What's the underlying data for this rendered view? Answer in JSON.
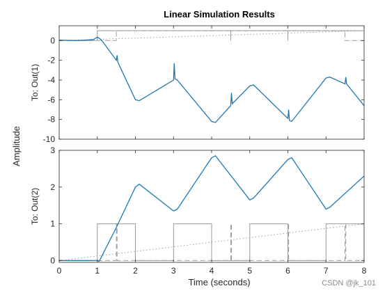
{
  "chart_data": {
    "type": "line",
    "title": "Linear Simulation Results",
    "xlabel": "Time (seconds)",
    "ylabel": "Amplitude",
    "grid": false,
    "x_ticks": [
      0,
      1,
      2,
      3,
      4,
      5,
      6,
      7,
      8
    ],
    "xlim": [
      0,
      8
    ],
    "subplots": [
      {
        "ylabel": "To: Out(1)",
        "ylim": [
          -10,
          1.5
        ],
        "y_ticks": [
          0,
          -2,
          -4,
          -6,
          -8,
          -10
        ],
        "response": {
          "color": "#1f77b4",
          "points": [
            [
              0,
              0.05
            ],
            [
              0.5,
              0.0
            ],
            [
              0.9,
              0.1
            ],
            [
              1.0,
              0.35
            ],
            [
              1.1,
              0.1
            ],
            [
              1.5,
              -2.0
            ],
            [
              1.52,
              -1.5
            ],
            [
              1.54,
              -2.2
            ],
            [
              2.0,
              -6.0
            ],
            [
              2.1,
              -6.1
            ],
            [
              3.0,
              -4.0
            ],
            [
              3.02,
              -2.3
            ],
            [
              3.04,
              -3.9
            ],
            [
              3.1,
              -4.0
            ],
            [
              4.0,
              -8.2
            ],
            [
              4.1,
              -8.3
            ],
            [
              4.5,
              -6.6
            ],
            [
              4.52,
              -5.3
            ],
            [
              4.54,
              -6.4
            ],
            [
              5.0,
              -4.6
            ],
            [
              5.1,
              -4.5
            ],
            [
              6.0,
              -7.9
            ],
            [
              6.02,
              -7.0
            ],
            [
              6.04,
              -8.1
            ],
            [
              6.1,
              -8.2
            ],
            [
              7.0,
              -3.8
            ],
            [
              7.1,
              -3.7
            ],
            [
              7.5,
              -4.4
            ],
            [
              7.52,
              -3.7
            ],
            [
              7.54,
              -4.4
            ],
            [
              8.0,
              -6.6
            ]
          ]
        },
        "inputs": [
          {
            "color": "#9a9a9a",
            "dash": "solid",
            "points": [
              [
                0,
                0
              ],
              [
                1,
                0
              ],
              [
                1,
                1
              ],
              [
                2,
                1
              ],
              [
                2,
                1.0
              ],
              [
                3,
                1.0
              ],
              [
                3,
                1
              ],
              [
                4,
                1
              ],
              [
                4,
                1
              ],
              [
                5,
                1
              ],
              [
                5,
                1
              ],
              [
                6,
                1
              ],
              [
                6,
                1
              ],
              [
                7,
                1
              ],
              [
                7,
                1
              ],
              [
                8,
                1
              ]
            ]
          },
          {
            "color": "#9a9a9a",
            "dash": "dashed",
            "points": [
              [
                0,
                0
              ],
              [
                1.5,
                0
              ],
              [
                1.5,
                1
              ],
              [
                2,
                1
              ],
              [
                2,
                1
              ],
              [
                3,
                1
              ],
              [
                3,
                1
              ],
              [
                4,
                1
              ],
              [
                4,
                1
              ],
              [
                4.5,
                1
              ],
              [
                4.5,
                0
              ],
              [
                4.5,
                1
              ],
              [
                5,
                1
              ],
              [
                6,
                1
              ],
              [
                6,
                0
              ],
              [
                6,
                1
              ],
              [
                7.5,
                1
              ],
              [
                7.5,
                0
              ],
              [
                8,
                0
              ]
            ]
          },
          {
            "color": "#9a9a9a",
            "dash": "dotted",
            "points": [
              [
                0,
                0
              ],
              [
                8,
                1
              ]
            ]
          }
        ]
      },
      {
        "ylabel": "To: Out(2)",
        "ylim": [
          -0.05,
          3.0
        ],
        "y_ticks": [
          0,
          1,
          2,
          3
        ],
        "response": {
          "color": "#1f77b4",
          "points": [
            [
              0,
              0
            ],
            [
              0.5,
              0.0
            ],
            [
              1.0,
              0.0
            ],
            [
              1.05,
              -0.02
            ],
            [
              1.5,
              0.9
            ],
            [
              2.0,
              2.0
            ],
            [
              2.1,
              2.08
            ],
            [
              3.0,
              1.35
            ],
            [
              3.1,
              1.4
            ],
            [
              4.0,
              2.8
            ],
            [
              4.1,
              2.85
            ],
            [
              5.0,
              1.65
            ],
            [
              5.1,
              1.7
            ],
            [
              6.0,
              2.75
            ],
            [
              6.1,
              2.8
            ],
            [
              7.0,
              1.4
            ],
            [
              7.1,
              1.45
            ],
            [
              8.0,
              2.3
            ]
          ]
        },
        "inputs": [
          {
            "color": "#9a9a9a",
            "dash": "solid",
            "points": [
              [
                0,
                0
              ],
              [
                1,
                0
              ],
              [
                1,
                1
              ],
              [
                2,
                1
              ],
              [
                2,
                0
              ],
              [
                3,
                0
              ],
              [
                3,
                1
              ],
              [
                4,
                1
              ],
              [
                4,
                0
              ],
              [
                5,
                0
              ],
              [
                5,
                1
              ],
              [
                6,
                1
              ],
              [
                6,
                0
              ],
              [
                7,
                0
              ],
              [
                7,
                1
              ],
              [
                8,
                1
              ]
            ]
          },
          {
            "color": "#9a9a9a",
            "dash": "dashed",
            "points": [
              [
                0,
                0
              ],
              [
                1.5,
                0
              ],
              [
                1.5,
                1
              ],
              [
                1.52,
                1
              ],
              [
                1.52,
                0
              ],
              [
                4.5,
                0
              ],
              [
                4.5,
                1
              ],
              [
                4.52,
                1
              ],
              [
                4.52,
                0
              ],
              [
                6.0,
                0
              ],
              [
                6.0,
                1
              ],
              [
                6.02,
                1
              ],
              [
                6.02,
                0
              ],
              [
                7.5,
                0
              ],
              [
                7.5,
                1
              ],
              [
                7.52,
                1
              ],
              [
                7.52,
                0
              ],
              [
                8,
                0
              ]
            ]
          },
          {
            "color": "#9a9a9a",
            "dash": "dotted",
            "points": [
              [
                0,
                0
              ],
              [
                8,
                1
              ]
            ]
          }
        ]
      }
    ]
  },
  "watermark": "CSDN @jk_101"
}
